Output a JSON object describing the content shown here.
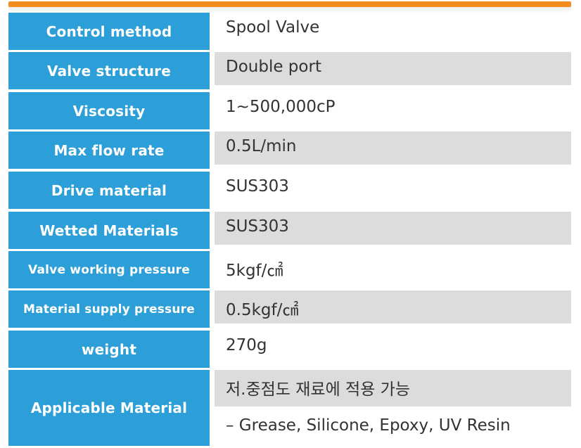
{
  "specs": [
    {
      "label": "Control method",
      "value": "Spool Valve"
    },
    {
      "label": "Valve structure",
      "value": "Double port"
    },
    {
      "label": "Viscosity",
      "value": "1~500,000cP"
    },
    {
      "label": "Max flow rate",
      "value": "0.5L/min"
    },
    {
      "label": "Drive material",
      "value": "SUS303"
    },
    {
      "label": "Wetted Materials",
      "value": "SUS303"
    },
    {
      "label": "Valve working pressure",
      "value": "5kgf/㎠"
    },
    {
      "label": "Material supply pressure",
      "value": "0.5kgf/㎠"
    },
    {
      "label": "weight",
      "value": "270g"
    }
  ],
  "applicable": {
    "label": "Applicable Material",
    "line1": "저.중점도 재료에 적용 가능",
    "line2": "– Grease, Silicone, Epoxy, UV Resin"
  },
  "colors": {
    "header_accent": "#f28c1e",
    "label_bg": "#2d9fd8",
    "value_shade": "#dcdcdc"
  }
}
